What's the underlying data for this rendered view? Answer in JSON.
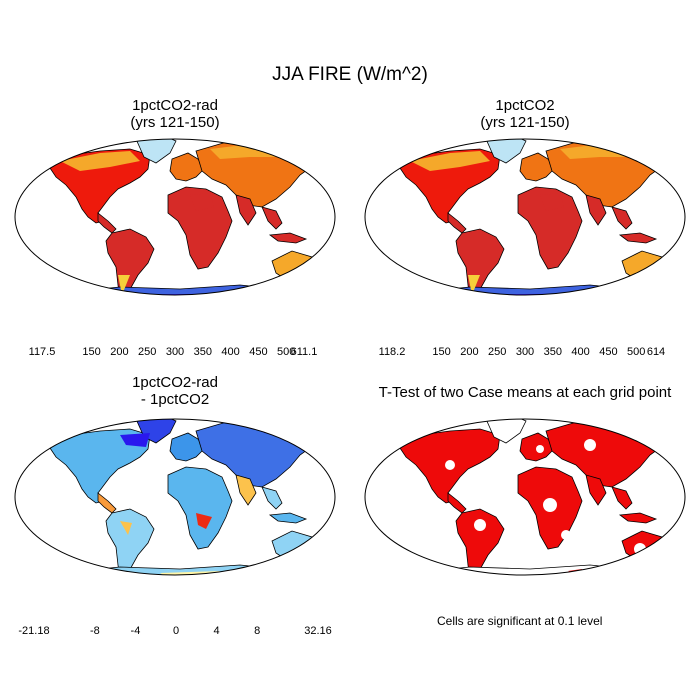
{
  "title": "JJA FIRE (W/m^2)",
  "panels": [
    {
      "id": "p1",
      "title_line1": "1pctCO2-rad",
      "title_line2": "(yrs 121-150)"
    },
    {
      "id": "p2",
      "title_line1": "1pctCO2",
      "title_line2": "(yrs 121-150)"
    },
    {
      "id": "p3",
      "title_line1": "1pctCO2-rad",
      "title_line2": "- 1pctCO2"
    },
    {
      "id": "p4",
      "title_line1": "T-Test of two Case means at each grid point",
      "title_line2": ""
    }
  ],
  "colorbars": {
    "cb1": {
      "labels": [
        "117.5",
        "150",
        "200",
        "250",
        "300",
        "350",
        "400",
        "450",
        "500",
        "611.1"
      ],
      "colors": [
        "#3a17f0",
        "#3e63e0",
        "#1f96f0",
        "#4cbcf0",
        "#bde4f5",
        "#f5cf3a",
        "#f5a82a",
        "#f07414",
        "#ee1a0c",
        "#d62b28"
      ]
    },
    "cb2": {
      "labels": [
        "118.2",
        "150",
        "200",
        "250",
        "300",
        "350",
        "400",
        "450",
        "500",
        "614"
      ],
      "colors": [
        "#3a17f0",
        "#3e63e0",
        "#1f96f0",
        "#4cbcf0",
        "#bde4f5",
        "#f5cf3a",
        "#f5a82a",
        "#f07414",
        "#ee1a0c",
        "#d62b28"
      ]
    },
    "cb3": {
      "labels": [
        "-21.18",
        "-8",
        "-4",
        "0",
        "4",
        "8",
        "32.16"
      ],
      "colors": [
        "#2a18ee",
        "#2e43e8",
        "#3e70e6",
        "#3c95ea",
        "#5ab6ee",
        "#8fd3f4",
        "#fff5a8",
        "#fee07a",
        "#fcc24c",
        "#f99a3a",
        "#f46a2a",
        "#ec2a14",
        "#e00a0a",
        "#d82828"
      ]
    }
  },
  "note": "Cells are significant at 0.1 level",
  "colors": {
    "ocean": "#ffffff",
    "coast": "#000000",
    "sig": "#ee0a0a"
  }
}
